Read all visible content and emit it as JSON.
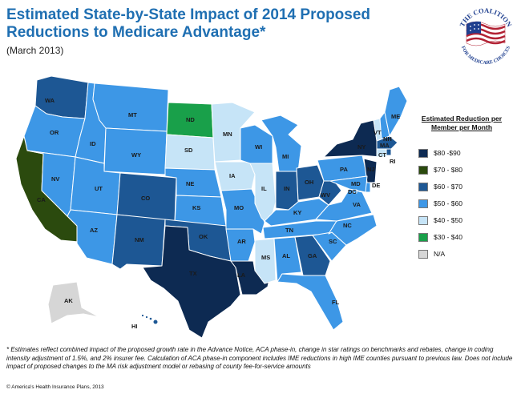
{
  "header": {
    "title": "Estimated State-by-State Impact of 2014 Proposed Reductions to Medicare Advantage*",
    "subtitle": "(March 2013)"
  },
  "logo": {
    "text_top": "THE COALITION",
    "text_bottom": "FOR MEDICARE CHOICES"
  },
  "legend": {
    "title": "Estimated Reduction per Member per Month",
    "items": [
      {
        "label": "$80 -$90",
        "color": "#0d2a52"
      },
      {
        "label": "$70 - $80",
        "color": "#2b4a0e"
      },
      {
        "label": "$60 - $70",
        "color": "#1d5794"
      },
      {
        "label": "$50 - $60",
        "color": "#3d97e6"
      },
      {
        "label": "$40 - $50",
        "color": "#c6e4f7"
      },
      {
        "label": "$30 - $40",
        "color": "#19a04a"
      },
      {
        "label": "N/A",
        "color": "#d6d6d6"
      }
    ]
  },
  "states": {
    "WA": "WA",
    "OR": "OR",
    "CA": "CA",
    "NV": "NV",
    "ID": "ID",
    "MT": "MT",
    "WY": "WY",
    "UT": "UT",
    "AZ": "AZ",
    "CO": "CO",
    "NM": "NM",
    "ND": "ND",
    "SD": "SD",
    "NE": "NE",
    "KS": "KS",
    "OK": "OK",
    "TX": "TX",
    "MN": "MN",
    "IA": "IA",
    "MO": "MO",
    "AR": "AR",
    "LA": "LA",
    "WI": "WI",
    "IL": "IL",
    "MI": "MI",
    "IN": "IN",
    "OH": "OH",
    "KY": "KY",
    "TN": "TN",
    "MS": "MS",
    "AL": "AL",
    "GA": "GA",
    "FL": "FL",
    "SC": "SC",
    "NC": "NC",
    "VA": "VA",
    "WV": "WV",
    "PA": "PA",
    "NY": "NY",
    "VT": "VT",
    "NH": "NH",
    "ME": "ME",
    "MA": "MA",
    "CT": "CT",
    "RI": "RI",
    "NJ": "NJ",
    "DE": "DE",
    "MD": "MD",
    "DC": "DC",
    "AK": "AK",
    "HI": "HI"
  },
  "state_values": {
    "WA": "$60 - $70",
    "OR": "$50 - $60",
    "CA": "$70 - $80",
    "NV": "$50 - $60",
    "ID": "$50 - $60",
    "MT": "$50 - $60",
    "WY": "$50 - $60",
    "UT": "$50 - $60",
    "AZ": "$50 - $60",
    "CO": "$60 - $70",
    "NM": "$60 - $70",
    "ND": "$30 - $40",
    "SD": "$40 - $50",
    "NE": "$50 - $60",
    "KS": "$50 - $60",
    "OK": "$60 - $70",
    "TX": "$80 -$90",
    "MN": "$40 - $50",
    "IA": "$40 - $50",
    "MO": "$50 - $60",
    "AR": "$50 - $60",
    "LA": "$80 -$90",
    "WI": "$50 - $60",
    "IL": "$40 - $50",
    "MI": "$50 - $60",
    "IN": "$60 - $70",
    "OH": "$60 - $70",
    "KY": "$50 - $60",
    "TN": "$50 - $60",
    "MS": "$40 - $50",
    "AL": "$50 - $60",
    "GA": "$60 - $70",
    "FL": "$50 - $60",
    "SC": "$50 - $60",
    "NC": "$50 - $60",
    "VA": "$50 - $60",
    "WV": "$60 - $70",
    "PA": "$50 - $60",
    "NY": "$80 -$90",
    "VT": "$40 - $50",
    "NH": "$50 - $60",
    "ME": "$50 - $60",
    "MA": "$60 - $70",
    "CT": "$40 - $50",
    "RI": "$60 - $70",
    "NJ": "$80 -$90",
    "DE": "$50 - $60",
    "MD": "$50 - $60",
    "DC": "$50 - $60",
    "AK": "N/A",
    "HI": "$60 - $70"
  },
  "footnote": "* Estimates reflect combined impact of the proposed growth rate in the Advance Notice, ACA phase-in, change in star ratings on benchmarks and rebates, change in coding intensity adjustment of 1.5%, and 2% insurer fee. Calculation of ACA phase-in component includes IME reductions in high IME counties pursuant to previous law. Does not include impact of proposed changes to the MA risk adjustment model or rebasing of county fee-for-service amounts",
  "copyright": "© America's Health Insurance Plans, 2013"
}
